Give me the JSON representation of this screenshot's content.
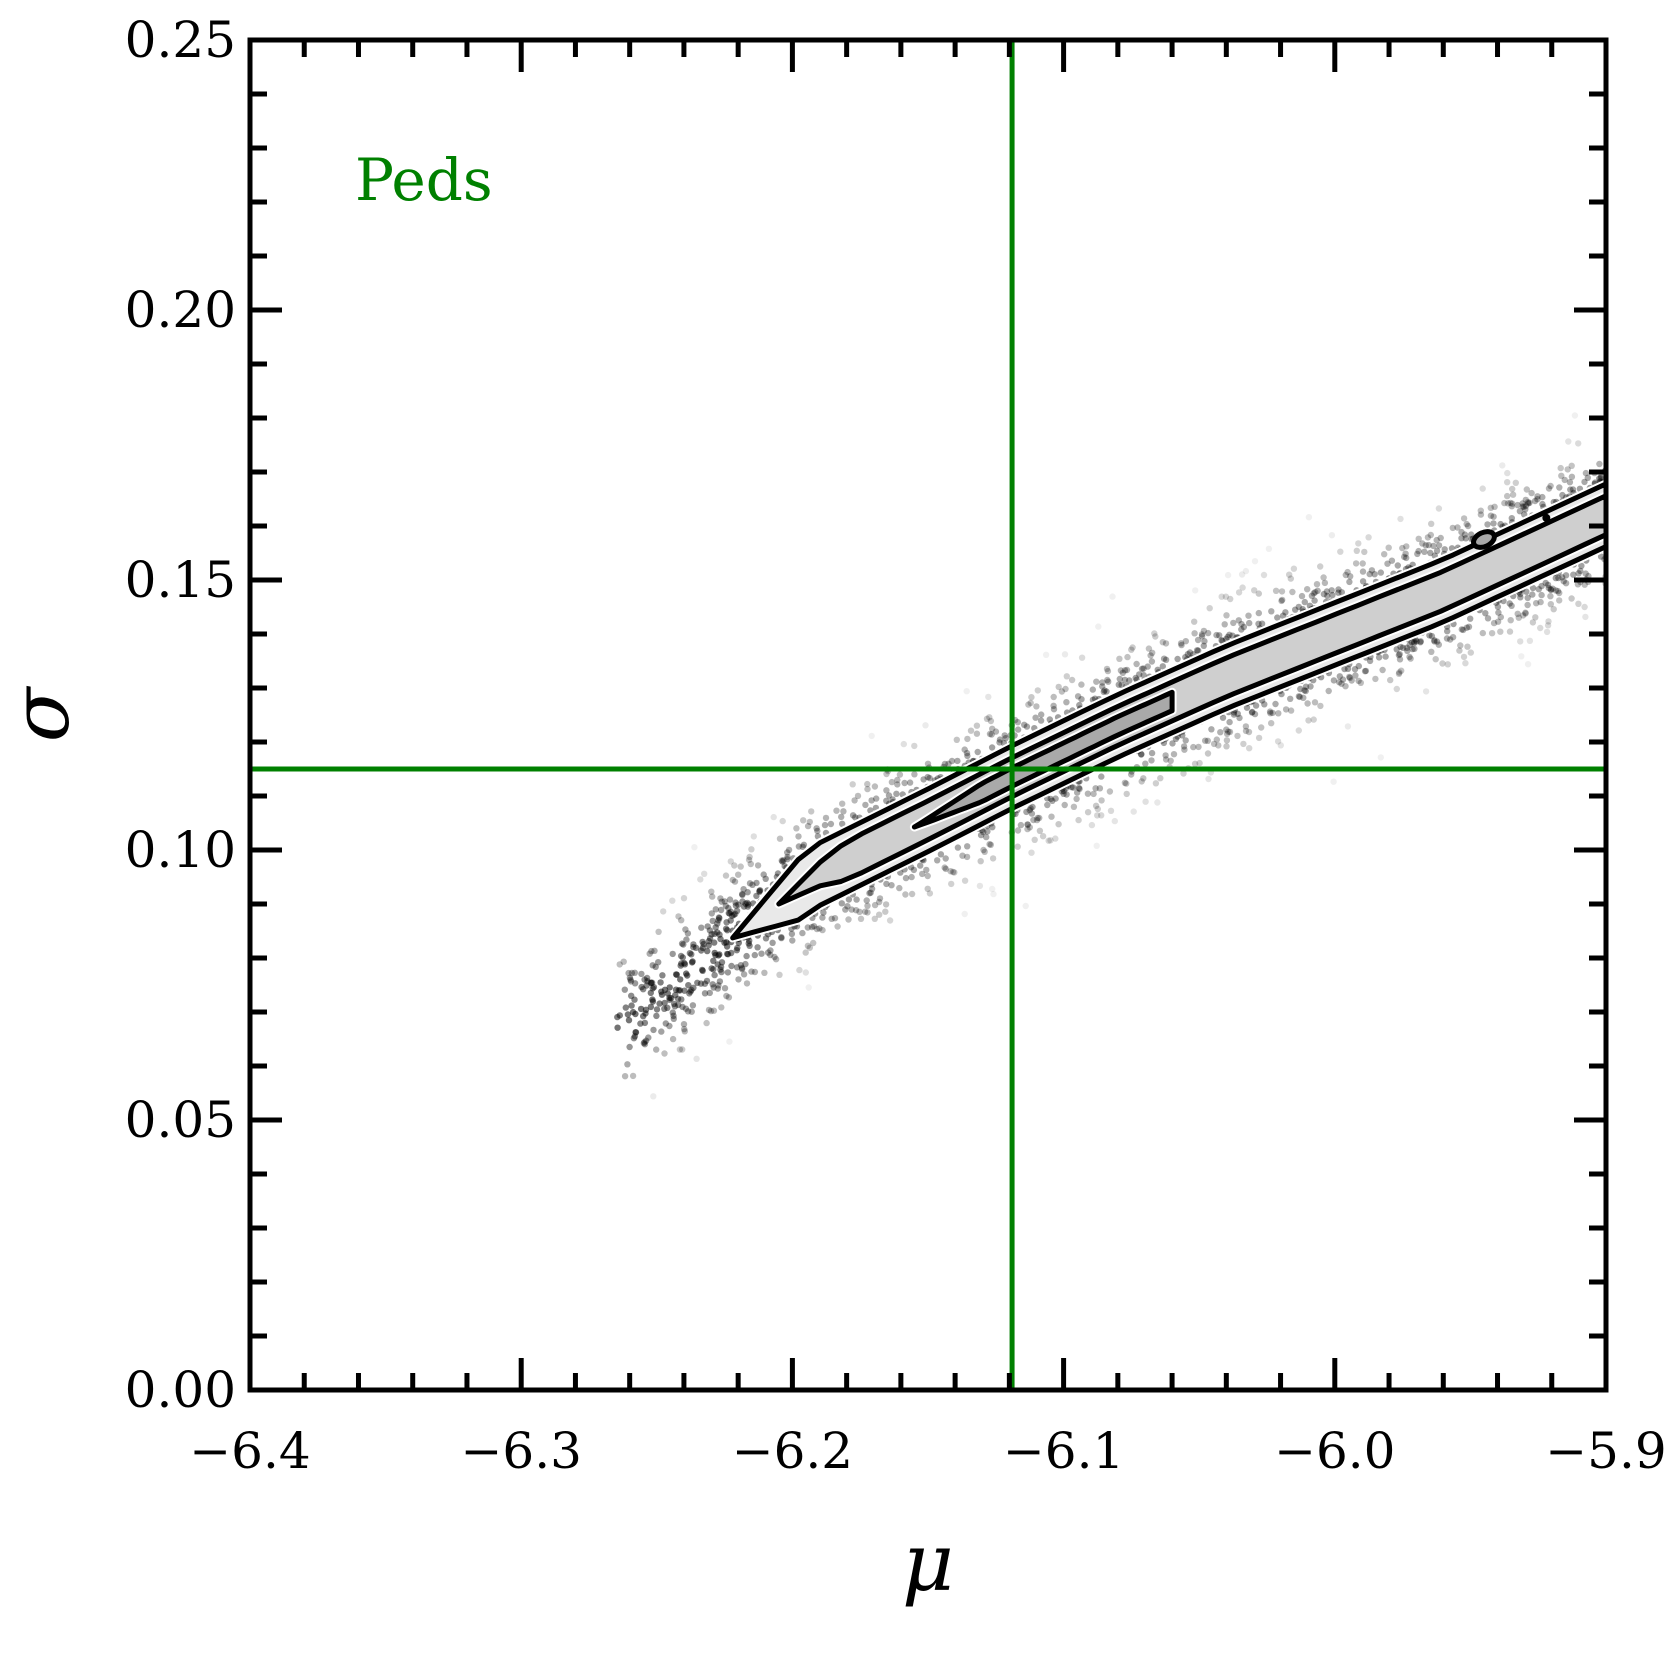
{
  "chart_data": {
    "type": "scatter",
    "title": "",
    "xlabel": "μ",
    "ylabel": "σ",
    "xlim": [
      -6.4,
      -5.9
    ],
    "ylim": [
      0.0,
      0.25
    ],
    "x_ticks": [
      -6.4,
      -6.3,
      -6.2,
      -6.1,
      -6.0,
      -5.9
    ],
    "x_tick_labels": [
      "−6.4",
      "−6.3",
      "−6.2",
      "−6.1",
      "−6.0",
      "−5.9"
    ],
    "y_ticks": [
      0.0,
      0.05,
      0.1,
      0.15,
      0.2,
      0.25
    ],
    "y_tick_labels": [
      "0.00",
      "0.05",
      "0.10",
      "0.15",
      "0.20",
      "0.25"
    ],
    "grid": false,
    "annotation": {
      "text": "Peds",
      "color": "#008000"
    },
    "reference_lines": {
      "mu": -6.119,
      "sigma": 0.115,
      "color": "#008000"
    },
    "posterior_ridge": {
      "mu": [
        -6.265,
        -6.22,
        -6.19,
        -6.15,
        -6.119,
        -6.08,
        -6.04,
        -6.0,
        -5.96,
        -5.9
      ],
      "sigma": [
        0.067,
        0.0845,
        0.0955,
        0.1055,
        0.1135,
        0.123,
        0.132,
        0.14,
        0.148,
        0.162
      ]
    },
    "contours": [
      {
        "level": "outer",
        "half_width_sigma": 0.0058
      },
      {
        "level": "middle",
        "half_width_sigma": 0.0036
      },
      {
        "level": "inner",
        "half_width_sigma": 0.0017
      }
    ],
    "colors": {
      "points": "#000000",
      "lines": "#008000",
      "axes": "#000000"
    }
  }
}
